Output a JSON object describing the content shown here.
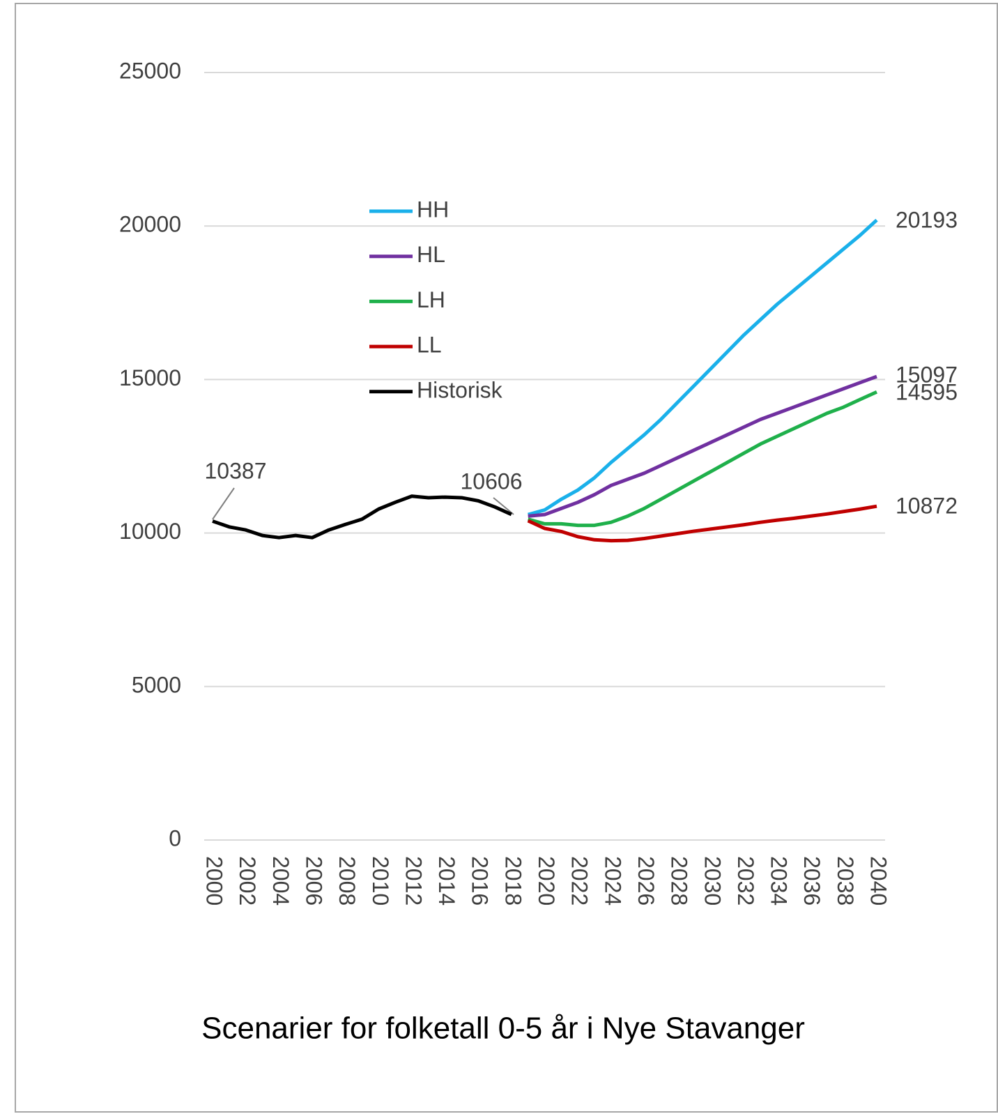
{
  "chart_data": {
    "type": "line",
    "title": "Scenarier for folketall 0-5 år i Nye Stavanger",
    "x": [
      2000,
      2001,
      2002,
      2003,
      2004,
      2005,
      2006,
      2007,
      2008,
      2009,
      2010,
      2011,
      2012,
      2013,
      2014,
      2015,
      2016,
      2017,
      2018,
      2019,
      2020,
      2021,
      2022,
      2023,
      2024,
      2025,
      2026,
      2027,
      2028,
      2029,
      2030,
      2031,
      2032,
      2033,
      2034,
      2035,
      2036,
      2037,
      2038,
      2039,
      2040
    ],
    "xlim": [
      2000,
      2040
    ],
    "xticks": [
      2000,
      2002,
      2004,
      2006,
      2008,
      2010,
      2012,
      2014,
      2016,
      2018,
      2020,
      2022,
      2024,
      2026,
      2028,
      2030,
      2032,
      2034,
      2036,
      2038,
      2040
    ],
    "ylim": [
      0,
      25000
    ],
    "yticks": [
      0,
      5000,
      10000,
      15000,
      20000,
      25000
    ],
    "grid": true,
    "series": [
      {
        "name": "HH",
        "color": "#1ab0ea",
        "values": [
          null,
          null,
          null,
          null,
          null,
          null,
          null,
          null,
          null,
          null,
          null,
          null,
          null,
          null,
          null,
          null,
          null,
          null,
          null,
          10600,
          10750,
          11100,
          11400,
          11800,
          12300,
          12750,
          13200,
          13700,
          14250,
          14800,
          15350,
          15900,
          16450,
          16950,
          17450,
          17900,
          18350,
          18800,
          19250,
          19700,
          20193
        ]
      },
      {
        "name": "HL",
        "color": "#7030a0",
        "values": [
          null,
          null,
          null,
          null,
          null,
          null,
          null,
          null,
          null,
          null,
          null,
          null,
          null,
          null,
          null,
          null,
          null,
          null,
          null,
          10550,
          10600,
          10800,
          11000,
          11250,
          11550,
          11750,
          11950,
          12200,
          12450,
          12700,
          12950,
          13200,
          13450,
          13700,
          13900,
          14100,
          14300,
          14500,
          14700,
          14900,
          15097
        ]
      },
      {
        "name": "LH",
        "color": "#1fb04b",
        "values": [
          null,
          null,
          null,
          null,
          null,
          null,
          null,
          null,
          null,
          null,
          null,
          null,
          null,
          null,
          null,
          null,
          null,
          null,
          null,
          10450,
          10300,
          10300,
          10250,
          10250,
          10350,
          10550,
          10800,
          11100,
          11400,
          11700,
          12000,
          12300,
          12600,
          12900,
          13150,
          13400,
          13650,
          13900,
          14100,
          14350,
          14595
        ]
      },
      {
        "name": "LL",
        "color": "#c00000",
        "values": [
          null,
          null,
          null,
          null,
          null,
          null,
          null,
          null,
          null,
          null,
          null,
          null,
          null,
          null,
          null,
          null,
          null,
          null,
          null,
          10400,
          10150,
          10050,
          9880,
          9780,
          9750,
          9760,
          9820,
          9900,
          9980,
          10060,
          10130,
          10200,
          10270,
          10350,
          10420,
          10480,
          10550,
          10620,
          10700,
          10780,
          10872
        ]
      },
      {
        "name": "Historisk",
        "color": "#000000",
        "values": [
          10387,
          10200,
          10100,
          9920,
          9850,
          9920,
          9850,
          10100,
          10280,
          10450,
          10780,
          11000,
          11200,
          11150,
          11170,
          11150,
          11050,
          10850,
          10606,
          null,
          null,
          null,
          null,
          null,
          null,
          null,
          null,
          null,
          null,
          null,
          null,
          null,
          null,
          null,
          null,
          null,
          null,
          null,
          null,
          null,
          null
        ]
      }
    ]
  }
}
